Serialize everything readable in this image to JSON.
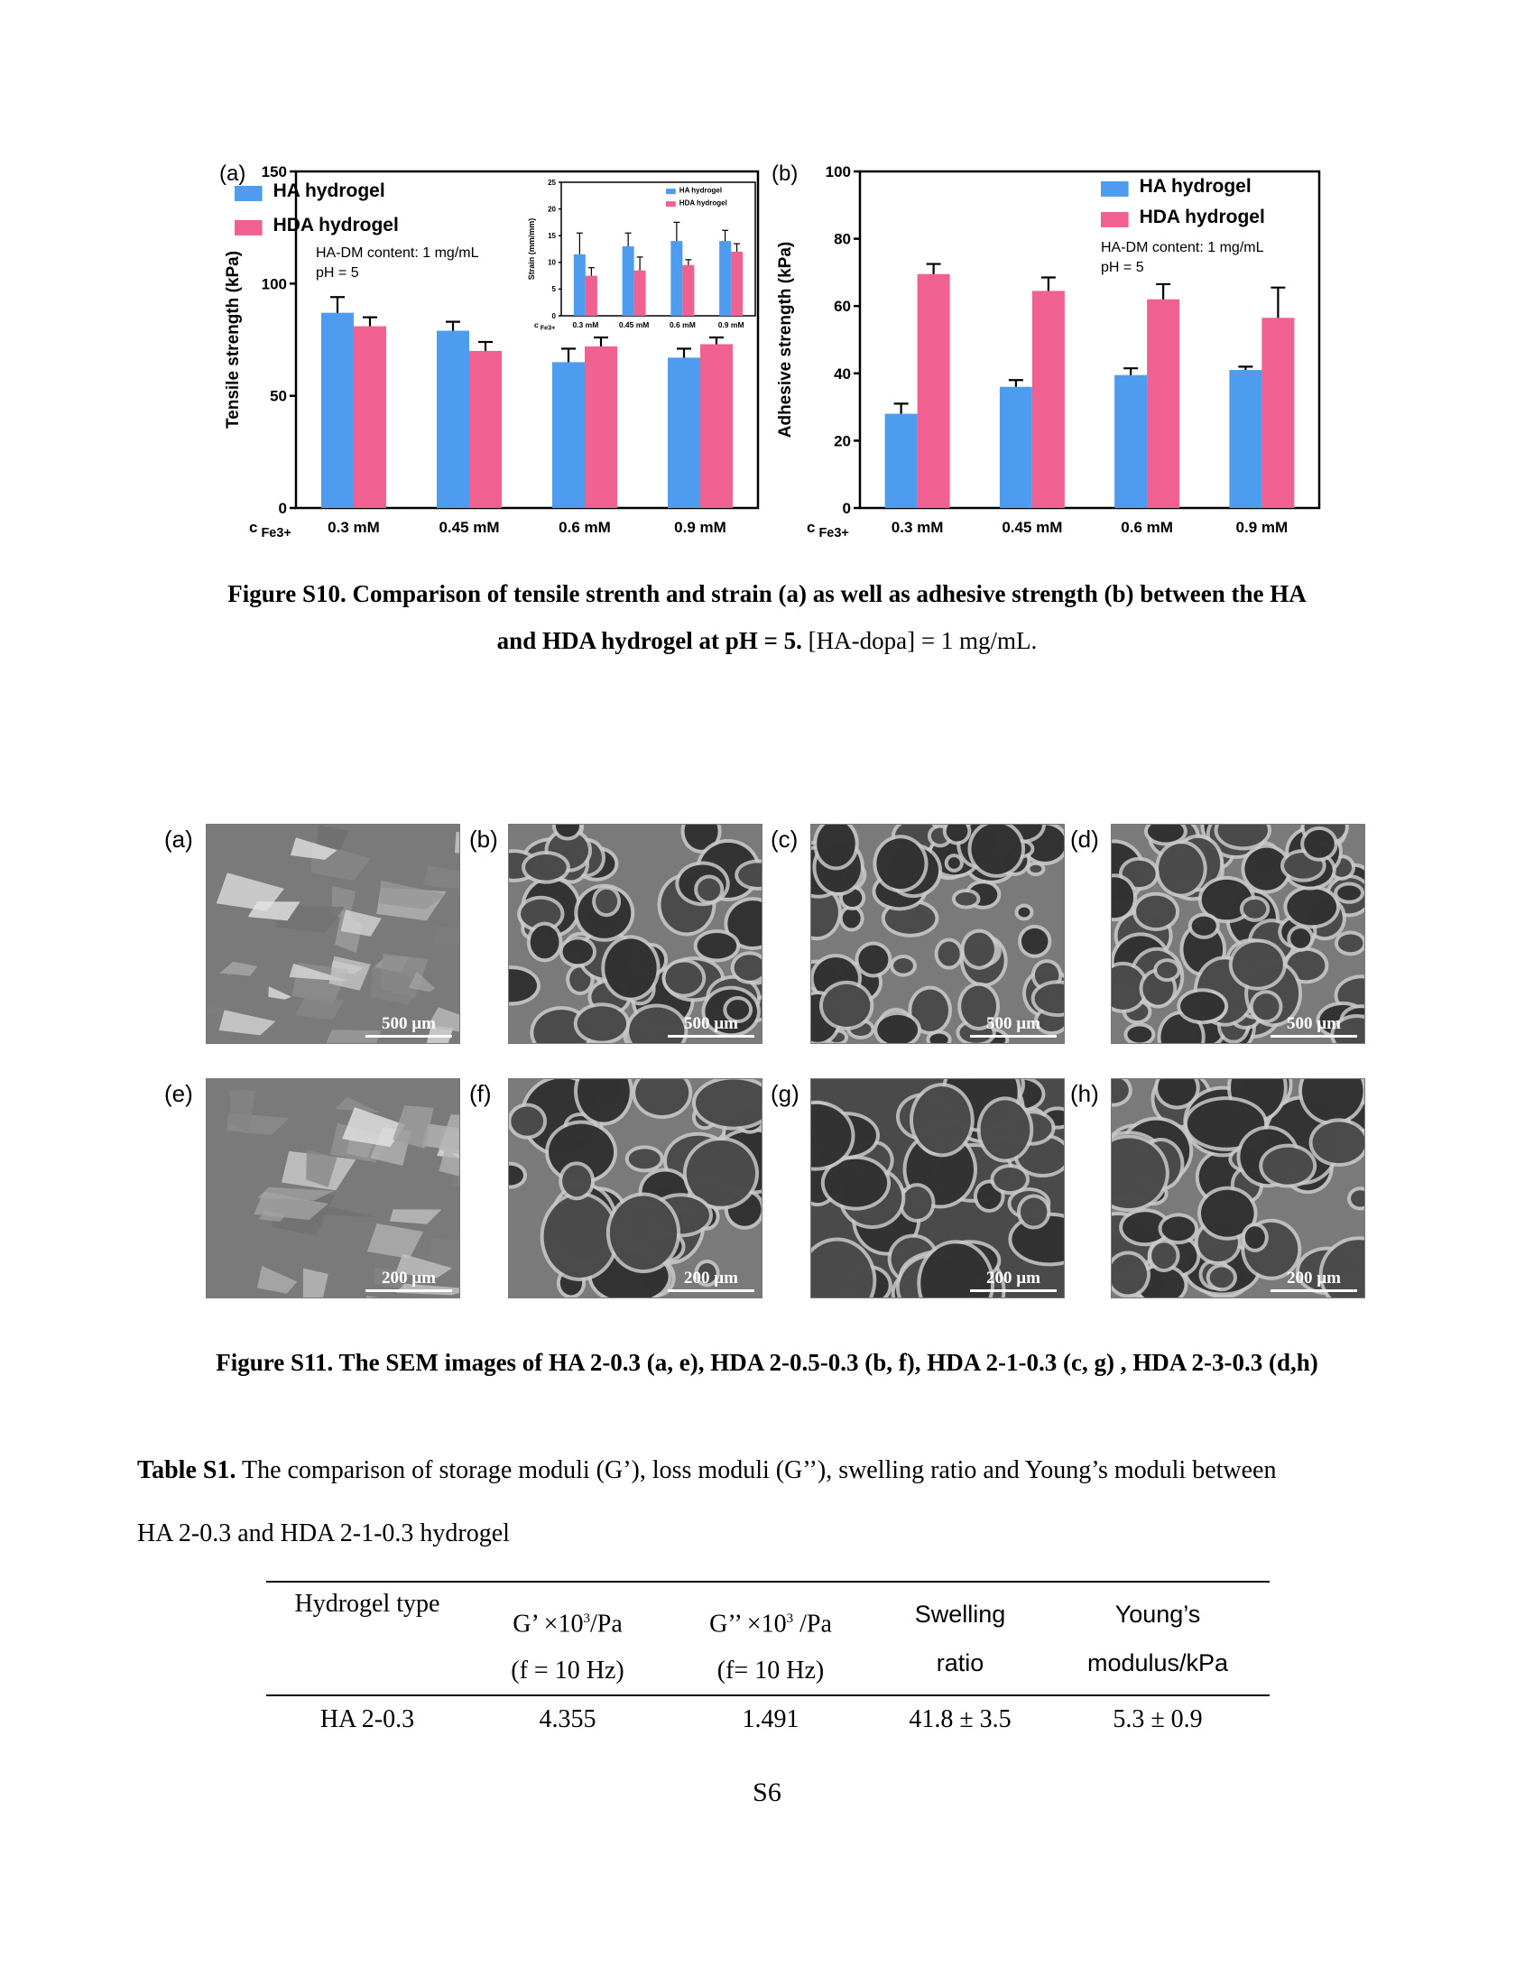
{
  "figure_s10": {
    "caption_bold_line1": "Figure S10. Comparison of tensile strenth and strain (a) as well as adhesive strength (b) between  the HA",
    "caption_bold_line2": "and HDA hydrogel at pH = 5.",
    "caption_normal_line2": " [HA-dopa] = 1 mg/mL."
  },
  "chart_data": [
    {
      "type": "bar",
      "panel_label": "(a)",
      "categories": [
        "0.3 mM",
        "0.45 mM",
        "0.6 mM",
        "0.9 mM"
      ],
      "xlabel_prefix": "c",
      "xlabel_sub": "Fe3+",
      "ylabel": "Tensile strength (kPa)",
      "ylim": [
        0,
        150
      ],
      "yticks": [
        0,
        50,
        100,
        150
      ],
      "series": [
        {
          "name": "HA hydrogel",
          "color": "#4d9cf0",
          "values": [
            87,
            79,
            65,
            67
          ],
          "errors": [
            7,
            4,
            6,
            4
          ]
        },
        {
          "name": "HDA hydrogel",
          "color": "#f06090",
          "values": [
            81,
            70,
            72,
            73
          ],
          "errors": [
            4,
            4,
            4,
            3
          ]
        }
      ],
      "annotations": [
        "HA-DM content: 1 mg/mL",
        "pH = 5"
      ],
      "legend": "top-left",
      "inset": {
        "type": "bar",
        "categories": [
          "0.3 mM",
          "0.45 mM",
          "0.6 mM",
          "0.9 mM"
        ],
        "xlabel_prefix": "c",
        "xlabel_sub": "Fe3+",
        "ylabel": "Strain (mm/mm)",
        "ylim": [
          0,
          25
        ],
        "yticks": [
          0,
          5,
          10,
          15,
          20,
          25
        ],
        "series": [
          {
            "name": "HA hydrogel",
            "color": "#4d9cf0",
            "values": [
              11.5,
              13,
              14,
              14
            ],
            "errors": [
              4,
              2.5,
              3.5,
              2
            ]
          },
          {
            "name": "HDA hydrogel",
            "color": "#f06090",
            "values": [
              7.5,
              8.5,
              9.5,
              12
            ],
            "errors": [
              1.5,
              2.5,
              1,
              1.5
            ]
          }
        ],
        "legend": "top-right"
      }
    },
    {
      "type": "bar",
      "panel_label": "(b)",
      "categories": [
        "0.3 mM",
        "0.45 mM",
        "0.6 mM",
        "0.9 mM"
      ],
      "xlabel_prefix": "c",
      "xlabel_sub": "Fe3+",
      "ylabel": "Adhesive strength (kPa)",
      "ylim": [
        0,
        100
      ],
      "yticks": [
        0,
        20,
        40,
        60,
        80,
        100
      ],
      "series": [
        {
          "name": "HA hydrogel",
          "color": "#4d9cf0",
          "values": [
            28,
            36,
            39.5,
            41
          ],
          "errors": [
            3,
            2,
            2,
            1
          ]
        },
        {
          "name": "HDA hydrogel",
          "color": "#f06090",
          "values": [
            69.5,
            64.5,
            62,
            56.5
          ],
          "errors": [
            3,
            4,
            4.5,
            9
          ]
        }
      ],
      "annotations": [
        "HA-DM content: 1 mg/mL",
        "pH = 5"
      ],
      "legend": "top-right"
    }
  ],
  "figure_s11": {
    "panels": [
      {
        "label": "(a)",
        "scale": "500 µm"
      },
      {
        "label": "(b)",
        "scale": "500 µm"
      },
      {
        "label": "(c)",
        "scale": "500 µm"
      },
      {
        "label": "(d)",
        "scale": "500 µm"
      },
      {
        "label": "(e)",
        "scale": "200 µm"
      },
      {
        "label": "(f)",
        "scale": "200 µm"
      },
      {
        "label": "(g)",
        "scale": "200 µm"
      },
      {
        "label": "(h)",
        "scale": "200 µm"
      }
    ],
    "caption": "Figure S11. The SEM images of HA 2-0.3 (a, e), HDA 2-0.5-0.3 (b, f), HDA 2-1-0.3 (c, g) , HDA 2-3-0.3 (d,h)"
  },
  "table_s1": {
    "caption_bold": "Table S1.",
    "caption_line1": " The comparison of storage moduli (G’), loss moduli (G’’), swelling ratio and Young’s moduli between",
    "caption_line2": "HA 2-0.3 and HDA 2-1-0.3 hydrogel",
    "headers": [
      {
        "line1": "Hydrogel type",
        "line2": ""
      },
      {
        "line1_pre": "G’ ×10",
        "line1_sup": "3",
        "line1_post": "/Pa",
        "line2": "(f = 10 Hz)"
      },
      {
        "line1_pre": "G’’ ×10",
        "line1_sup": "3",
        "line1_post": " /Pa",
        "line2": "(f= 10 Hz)"
      },
      {
        "line1": "Swelling",
        "line2": "ratio"
      },
      {
        "line1": "Young’s",
        "line2": "modulus/kPa"
      }
    ],
    "rows": [
      [
        "HA 2-0.3",
        "4.355",
        "1.491",
        "41.8 ± 3.5",
        "5.3 ± 0.9"
      ]
    ]
  },
  "page_number": "S6"
}
